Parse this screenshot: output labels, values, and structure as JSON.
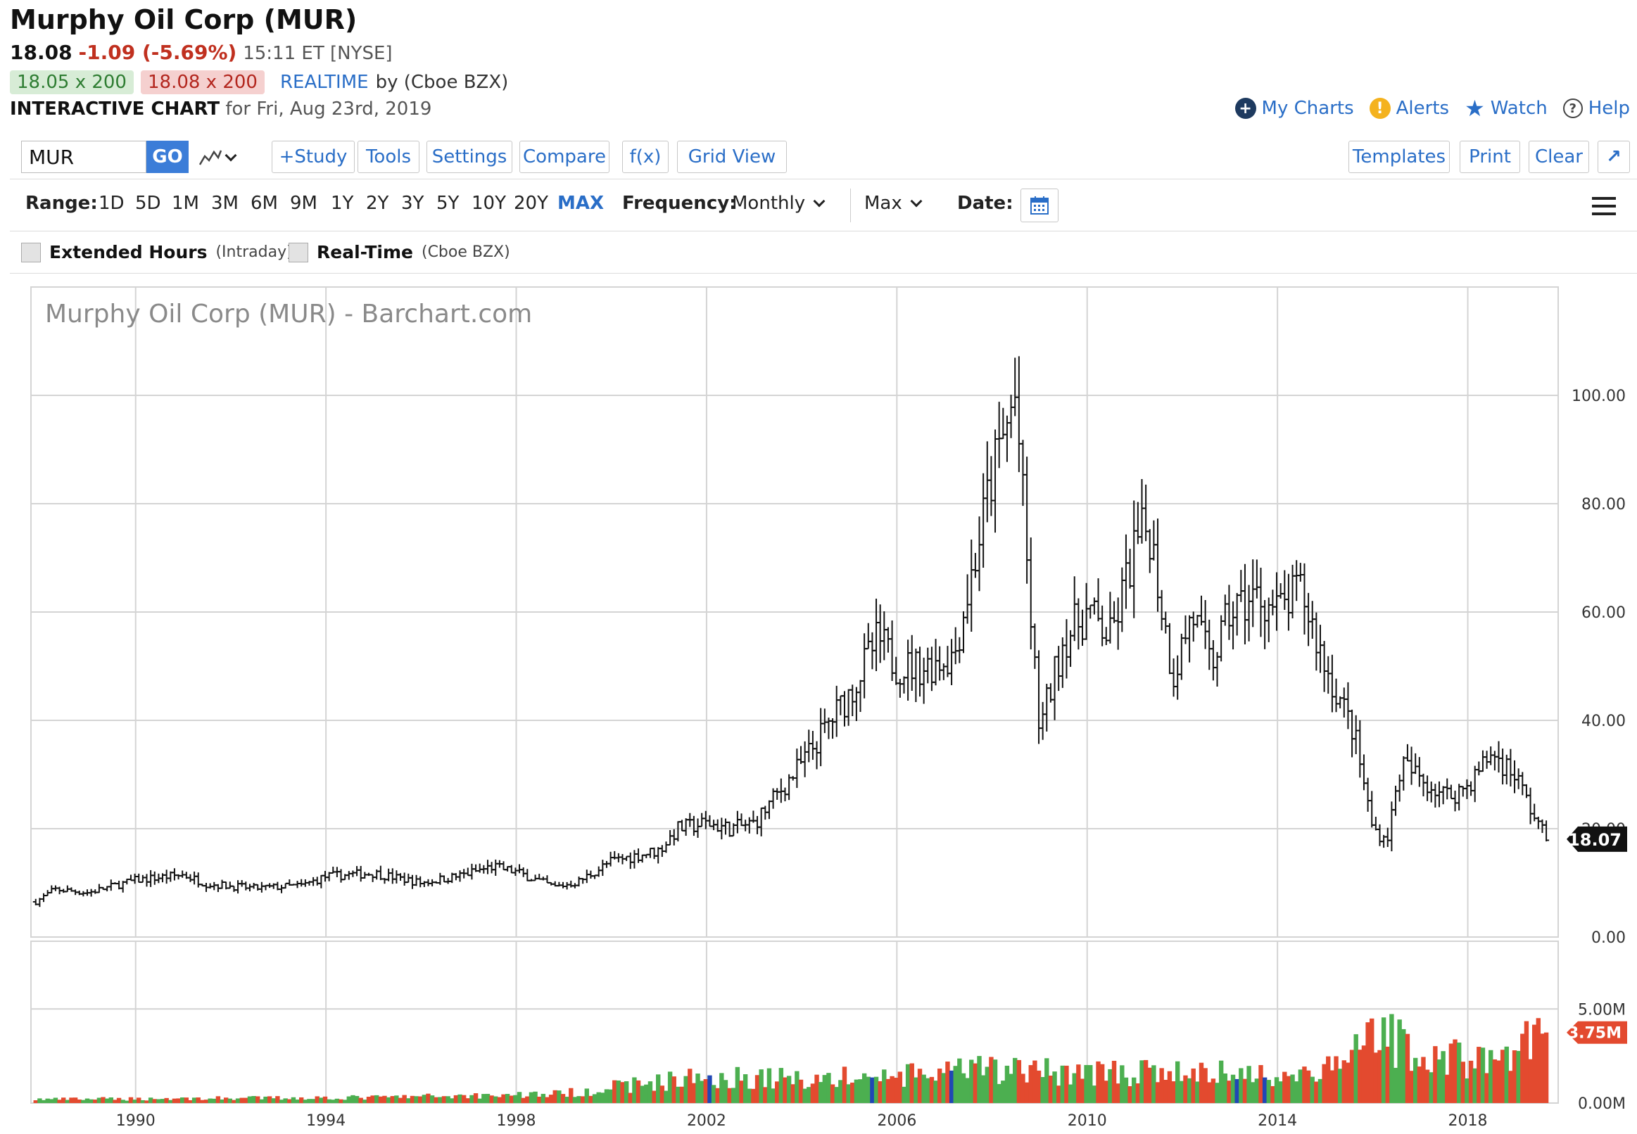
{
  "header": {
    "title": "Murphy Oil Corp (MUR)",
    "last": "18.08",
    "change": "-1.09 (-5.69%)",
    "time_exchange": "15:11 ET [NYSE]",
    "bid": "18.05 x 200",
    "ask": "18.08 x 200",
    "realtime_label": "REALTIME",
    "realtime_source": "by (Cboe BZX)",
    "chart_label": "INTERACTIVE CHART",
    "chart_date": "for Fri, Aug 23rd, 2019"
  },
  "util_links": {
    "my_charts": "My Charts",
    "alerts": "Alerts",
    "watch": "Watch",
    "help": "Help"
  },
  "toolbar": {
    "symbol_value": "MUR",
    "go": "GO",
    "study": "+Study",
    "tools": "Tools",
    "settings": "Settings",
    "compare": "Compare",
    "fx": "f(x)",
    "grid_view": "Grid View",
    "templates": "Templates",
    "print": "Print",
    "clear": "Clear",
    "expand": "↗"
  },
  "range_bar": {
    "range_label": "Range:",
    "ranges": [
      "1D",
      "5D",
      "1M",
      "3M",
      "6M",
      "9M",
      "1Y",
      "2Y",
      "3Y",
      "5Y",
      "10Y",
      "20Y",
      "MAX"
    ],
    "active_range": "MAX",
    "frequency_label": "Frequency:",
    "frequency_value": "Monthly",
    "aggregation_value": "Max",
    "date_label": "Date:"
  },
  "options": {
    "extended_hours": "Extended Hours",
    "extended_sub": "(Intraday)",
    "real_time": "Real-Time",
    "real_time_sub": "(Cboe BZX)"
  },
  "colors": {
    "up": "#4caf50",
    "down": "#e34a2f",
    "blue_bar": "#2047b5",
    "link": "#2a6ec7",
    "grid": "#d4d4d4"
  },
  "chart_data": {
    "type": "bar",
    "watermark": "Murphy Oil Corp (MUR) - Barchart.com",
    "x_ticks": [
      "1990",
      "1994",
      "1998",
      "2002",
      "2006",
      "2010",
      "2014",
      "2018"
    ],
    "x_tick_years": [
      1990,
      1994,
      1998,
      2002,
      2006,
      2010,
      2014,
      2018
    ],
    "x_range": [
      1987.8,
      2019.9
    ],
    "price_ticks": [
      "100.00",
      "80.00",
      "60.00",
      "40.00",
      "20.00",
      "0.00"
    ],
    "price_tick_values": [
      100,
      80,
      60,
      40,
      20,
      0
    ],
    "ylim_price": [
      0,
      120
    ],
    "volume_ticks": [
      "5.00M",
      "0.00M"
    ],
    "volume_tick_values": [
      5,
      0
    ],
    "ylim_volume": [
      0,
      8.6
    ],
    "last_price_label": "18.07",
    "last_price": 18.07,
    "last_volume_label": "3.75M",
    "last_volume": 3.75,
    "price_anchors": [
      [
        1987.9,
        6.5
      ],
      [
        1988.3,
        8.8
      ],
      [
        1989.0,
        8.2
      ],
      [
        1990.0,
        10.5
      ],
      [
        1991.0,
        11.5
      ],
      [
        1991.5,
        9.8
      ],
      [
        1992.5,
        9.0
      ],
      [
        1993.5,
        9.5
      ],
      [
        1994.0,
        11.2
      ],
      [
        1995.0,
        11.8
      ],
      [
        1996.0,
        10.0
      ],
      [
        1996.8,
        11.3
      ],
      [
        1997.5,
        13.0
      ],
      [
        1998.0,
        12.0
      ],
      [
        1998.8,
        9.2
      ],
      [
        1999.3,
        10.2
      ],
      [
        2000.0,
        14.0
      ],
      [
        2001.0,
        16.0
      ],
      [
        2001.4,
        20.0
      ],
      [
        2002.0,
        21.0
      ],
      [
        2002.5,
        20.0
      ],
      [
        2003.0,
        21.0
      ],
      [
        2004.0,
        32.0
      ],
      [
        2005.0,
        45.0
      ],
      [
        2005.6,
        55.0
      ],
      [
        2006.0,
        50.0
      ],
      [
        2006.6,
        50.0
      ],
      [
        2007.2,
        52.0
      ],
      [
        2007.6,
        68.0
      ],
      [
        2008.0,
        85.0
      ],
      [
        2008.5,
        100.0
      ],
      [
        2008.8,
        60.0
      ],
      [
        2009.0,
        38.0
      ],
      [
        2009.5,
        55.0
      ],
      [
        2010.0,
        60.0
      ],
      [
        2010.5,
        55.0
      ],
      [
        2011.0,
        72.0
      ],
      [
        2011.3,
        76.0
      ],
      [
        2011.8,
        48.0
      ],
      [
        2012.2,
        60.0
      ],
      [
        2012.6,
        50.0
      ],
      [
        2013.0,
        60.0
      ],
      [
        2013.6,
        63.0
      ],
      [
        2014.0,
        60.0
      ],
      [
        2014.5,
        64.0
      ],
      [
        2015.0,
        50.0
      ],
      [
        2015.6,
        38.0
      ],
      [
        2016.0,
        20.0
      ],
      [
        2016.3,
        18.0
      ],
      [
        2016.6,
        32.0
      ],
      [
        2017.2,
        28.0
      ],
      [
        2017.6,
        26.0
      ],
      [
        2018.0,
        28.0
      ],
      [
        2018.5,
        34.0
      ],
      [
        2019.0,
        30.0
      ],
      [
        2019.3,
        24.0
      ],
      [
        2019.65,
        18.07
      ]
    ],
    "volume_anchors": [
      [
        1987.9,
        0.2
      ],
      [
        1995.0,
        0.3
      ],
      [
        1999.0,
        0.5
      ],
      [
        2000.5,
        1.0
      ],
      [
        2002.0,
        1.4
      ],
      [
        2004.0,
        1.3
      ],
      [
        2006.0,
        1.4
      ],
      [
        2008.0,
        1.8
      ],
      [
        2009.0,
        1.7
      ],
      [
        2011.0,
        1.6
      ],
      [
        2013.0,
        1.6
      ],
      [
        2014.5,
        1.5
      ],
      [
        2015.5,
        2.0
      ],
      [
        2016.0,
        4.8
      ],
      [
        2016.6,
        3.0
      ],
      [
        2017.5,
        2.5
      ],
      [
        2018.5,
        2.2
      ],
      [
        2019.65,
        3.75
      ]
    ]
  }
}
